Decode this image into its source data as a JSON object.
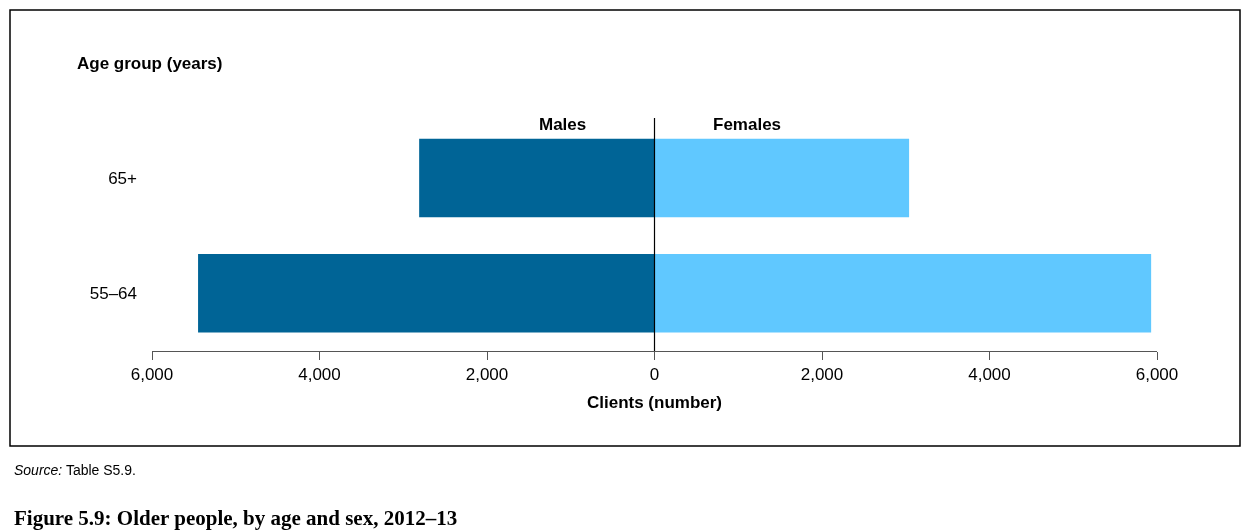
{
  "chart_data": {
    "type": "bar",
    "orientation": "horizontal",
    "stacked": true,
    "title": "Figure 5.9: Older people, by age and sex, 2012–13",
    "xlabel": "Clients (number)",
    "ylabel": "Age group (years)",
    "categories": [
      "65+",
      "55–64"
    ],
    "series": [
      {
        "name": "Males",
        "color": "#006496",
        "values": [
          -2810,
          -5450
        ]
      },
      {
        "name": "Females",
        "color": "#60c8ff",
        "values": [
          3040,
          5930
        ]
      }
    ],
    "xlim": [
      -6000,
      6000
    ],
    "xticks": [
      {
        "value": -6000,
        "label": "6,000"
      },
      {
        "value": -4000,
        "label": "4,000"
      },
      {
        "value": -2000,
        "label": "2,000"
      },
      0,
      {
        "value": 2000,
        "label": "2,000"
      },
      {
        "value": 4000,
        "label": "4,000"
      },
      {
        "value": 6000,
        "label": "6,000"
      }
    ],
    "ref_lines": [
      {
        "axis": "x",
        "value": 0
      }
    ],
    "annotations": [
      "Source: Table S5.9."
    ],
    "legend": false
  }
}
